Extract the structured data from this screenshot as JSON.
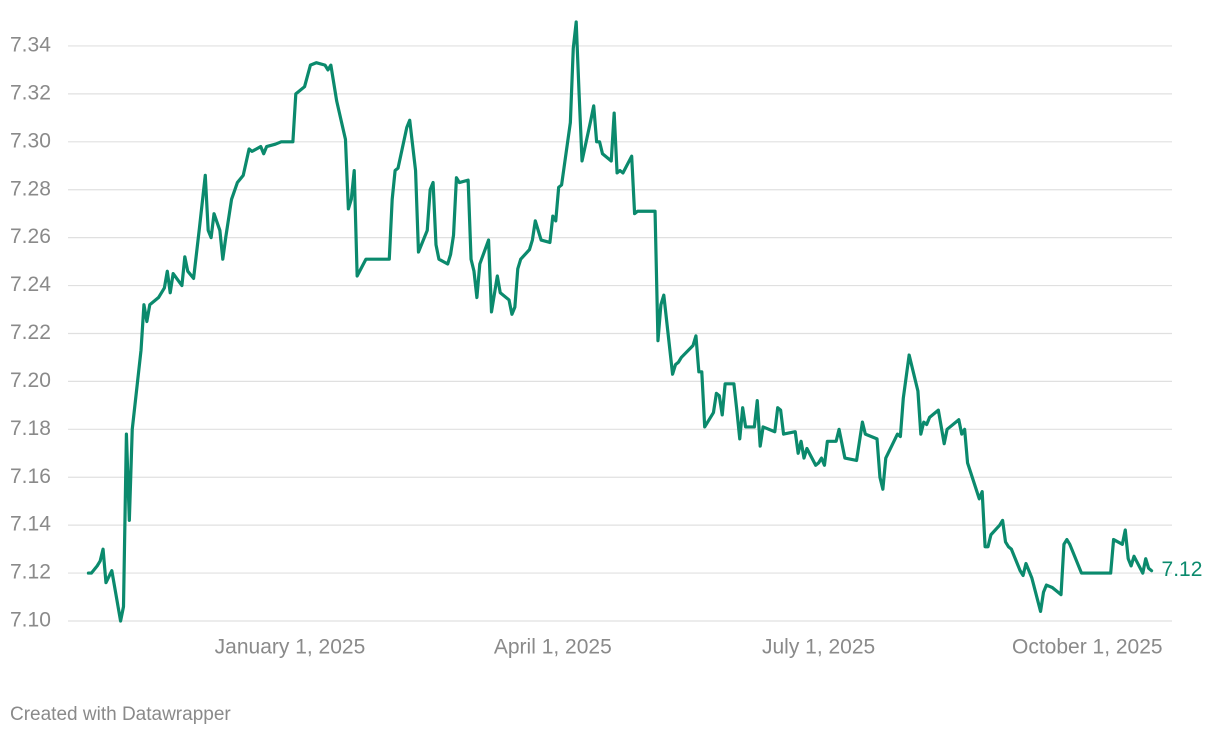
{
  "chart_data": {
    "type": "line",
    "color": "#0b8a6d",
    "grid": true,
    "credit": "Created with Datawrapper",
    "end_label": "7.12",
    "xlim": [
      "2024-10-17",
      "2025-10-30"
    ],
    "xticks": [
      {
        "value": "2025-01-01",
        "label": "January 1, 2025"
      },
      {
        "value": "2025-04-01",
        "label": "April 1, 2025"
      },
      {
        "value": "2025-07-01",
        "label": "July 1, 2025"
      },
      {
        "value": "2025-10-01",
        "label": "October 1, 2025"
      }
    ],
    "ylim": [
      7.1,
      7.35
    ],
    "yticks": [
      {
        "value": 7.1,
        "label": "7.10"
      },
      7.12,
      7.14,
      7.16,
      7.18,
      {
        "value": 7.2,
        "label": "7.20"
      },
      7.22,
      7.24,
      7.26,
      7.28,
      {
        "value": 7.3,
        "label": "7.30"
      },
      7.32,
      7.34
    ],
    "x": [
      "2024-10-24",
      "2024-10-25",
      "2024-10-27",
      "2024-10-28",
      "2024-10-29",
      "2024-10-30",
      "2024-11-01",
      "2024-11-04",
      "2024-11-05",
      "2024-11-06",
      "2024-11-07",
      "2024-11-08",
      "2024-11-11",
      "2024-11-12",
      "2024-11-13",
      "2024-11-14",
      "2024-11-17",
      "2024-11-19",
      "2024-11-20",
      "2024-11-21",
      "2024-11-22",
      "2024-11-25",
      "2024-11-26",
      "2024-11-27",
      "2024-11-29",
      "2024-12-01",
      "2024-12-03",
      "2024-12-04",
      "2024-12-05",
      "2024-12-06",
      "2024-12-08",
      "2024-12-09",
      "2024-12-10",
      "2024-12-12",
      "2024-12-14",
      "2024-12-16",
      "2024-12-18",
      "2024-12-19",
      "2024-12-22",
      "2024-12-23",
      "2024-12-24",
      "2024-12-27",
      "2024-12-29",
      "2025-01-02",
      "2025-01-03",
      "2025-01-06",
      "2025-01-08",
      "2025-01-10",
      "2025-01-13",
      "2025-01-14",
      "2025-01-15",
      "2025-01-17",
      "2025-01-20",
      "2025-01-21",
      "2025-01-22",
      "2025-01-23",
      "2025-01-24",
      "2025-01-27",
      "2025-02-04",
      "2025-02-05",
      "2025-02-06",
      "2025-02-07",
      "2025-02-10",
      "2025-02-11",
      "2025-02-13",
      "2025-02-14",
      "2025-02-17",
      "2025-02-18",
      "2025-02-19",
      "2025-02-20",
      "2025-02-21",
      "2025-02-24",
      "2025-02-25",
      "2025-02-26",
      "2025-02-27",
      "2025-02-28",
      "2025-03-03",
      "2025-03-04",
      "2025-03-05",
      "2025-03-06",
      "2025-03-07",
      "2025-03-10",
      "2025-03-11",
      "2025-03-13",
      "2025-03-14",
      "2025-03-17",
      "2025-03-18",
      "2025-03-19",
      "2025-03-20",
      "2025-03-21",
      "2025-03-24",
      "2025-03-25",
      "2025-03-26",
      "2025-03-28",
      "2025-03-31",
      "2025-04-01",
      "2025-04-02",
      "2025-04-03",
      "2025-04-04",
      "2025-04-07",
      "2025-04-08",
      "2025-04-09",
      "2025-04-10",
      "2025-04-11",
      "2025-04-14",
      "2025-04-15",
      "2025-04-16",
      "2025-04-17",
      "2025-04-18",
      "2025-04-21",
      "2025-04-22",
      "2025-04-23",
      "2025-04-24",
      "2025-04-25",
      "2025-04-28",
      "2025-04-29",
      "2025-04-30",
      "2025-05-06",
      "2025-05-07",
      "2025-05-08",
      "2025-05-09",
      "2025-05-12",
      "2025-05-13",
      "2025-05-14",
      "2025-05-15",
      "2025-05-19",
      "2025-05-20",
      "2025-05-21",
      "2025-05-22",
      "2025-05-23",
      "2025-05-26",
      "2025-05-27",
      "2025-05-28",
      "2025-05-29",
      "2025-05-30",
      "2025-06-02",
      "2025-06-03",
      "2025-06-04",
      "2025-06-05",
      "2025-06-06",
      "2025-06-09",
      "2025-06-10",
      "2025-06-11",
      "2025-06-12",
      "2025-06-16",
      "2025-06-17",
      "2025-06-18",
      "2025-06-19",
      "2025-06-23",
      "2025-06-24",
      "2025-06-25",
      "2025-06-26",
      "2025-06-27",
      "2025-06-30",
      "2025-07-01",
      "2025-07-02",
      "2025-07-03",
      "2025-07-04",
      "2025-07-07",
      "2025-07-08",
      "2025-07-10",
      "2025-07-14",
      "2025-07-16",
      "2025-07-17",
      "2025-07-21",
      "2025-07-22",
      "2025-07-23",
      "2025-07-24",
      "2025-07-28",
      "2025-07-29",
      "2025-07-30",
      "2025-08-01",
      "2025-08-04",
      "2025-08-05",
      "2025-08-06",
      "2025-08-07",
      "2025-08-08",
      "2025-08-11",
      "2025-08-13",
      "2025-08-14",
      "2025-08-18",
      "2025-08-19",
      "2025-08-20",
      "2025-08-21",
      "2025-08-25",
      "2025-08-26",
      "2025-08-27",
      "2025-08-28",
      "2025-08-29",
      "2025-09-01",
      "2025-09-02",
      "2025-09-03",
      "2025-09-04",
      "2025-09-05",
      "2025-09-08",
      "2025-09-09",
      "2025-09-10",
      "2025-09-12",
      "2025-09-15",
      "2025-09-16",
      "2025-09-17",
      "2025-09-19",
      "2025-09-22",
      "2025-09-23",
      "2025-09-24",
      "2025-09-25",
      "2025-09-29",
      "2025-10-09",
      "2025-10-10",
      "2025-10-13",
      "2025-10-14",
      "2025-10-15",
      "2025-10-16",
      "2025-10-17",
      "2025-10-20",
      "2025-10-21",
      "2025-10-22",
      "2025-10-23"
    ],
    "values": [
      7.12,
      7.12,
      7.123,
      7.125,
      7.13,
      7.116,
      7.121,
      7.1,
      7.106,
      7.178,
      7.142,
      7.18,
      7.213,
      7.232,
      7.225,
      7.232,
      7.235,
      7.239,
      7.246,
      7.237,
      7.245,
      7.24,
      7.252,
      7.246,
      7.243,
      7.264,
      7.286,
      7.263,
      7.26,
      7.27,
      7.263,
      7.251,
      7.26,
      7.276,
      7.283,
      7.286,
      7.297,
      7.296,
      7.298,
      7.295,
      7.298,
      7.299,
      7.3,
      7.3,
      7.32,
      7.323,
      7.332,
      7.333,
      7.332,
      7.33,
      7.332,
      7.317,
      7.301,
      7.272,
      7.276,
      7.288,
      7.244,
      7.251,
      7.251,
      7.276,
      7.288,
      7.289,
      7.306,
      7.309,
      7.288,
      7.254,
      7.263,
      7.28,
      7.283,
      7.257,
      7.251,
      7.249,
      7.253,
      7.261,
      7.285,
      7.283,
      7.284,
      7.251,
      7.246,
      7.235,
      7.249,
      7.259,
      7.229,
      7.244,
      7.237,
      7.234,
      7.228,
      7.231,
      7.247,
      7.251,
      7.255,
      7.259,
      7.267,
      7.259,
      7.258,
      7.269,
      7.267,
      7.281,
      7.282,
      7.308,
      7.339,
      7.35,
      7.32,
      7.292,
      7.309,
      7.315,
      7.3,
      7.3,
      7.295,
      7.292,
      7.312,
      7.287,
      7.288,
      7.287,
      7.294,
      7.27,
      7.271,
      7.271,
      7.217,
      7.232,
      7.236,
      7.203,
      7.207,
      7.208,
      7.21,
      7.215,
      7.219,
      7.204,
      7.204,
      7.181,
      7.187,
      7.195,
      7.194,
      7.186,
      7.199,
      7.199,
      7.188,
      7.176,
      7.189,
      7.181,
      7.181,
      7.192,
      7.173,
      7.181,
      7.179,
      7.189,
      7.188,
      7.178,
      7.179,
      7.17,
      7.175,
      7.168,
      7.172,
      7.165,
      7.166,
      7.168,
      7.165,
      7.175,
      7.175,
      7.18,
      7.168,
      7.167,
      7.183,
      7.178,
      7.176,
      7.16,
      7.155,
      7.168,
      7.178,
      7.177,
      7.193,
      7.211,
      7.196,
      7.178,
      7.183,
      7.182,
      7.185,
      7.188,
      7.174,
      7.18,
      7.184,
      7.178,
      7.18,
      7.166,
      7.151,
      7.154,
      7.131,
      7.131,
      7.136,
      7.14,
      7.142,
      7.133,
      7.131,
      7.13,
      7.121,
      7.119,
      7.124,
      7.118,
      7.104,
      7.112,
      7.115,
      7.114,
      7.111,
      7.132,
      7.134,
      7.132,
      7.12,
      7.12,
      7.134,
      7.132,
      7.138,
      7.126,
      7.123,
      7.127,
      7.12,
      7.126,
      7.122,
      7.121
    ]
  }
}
